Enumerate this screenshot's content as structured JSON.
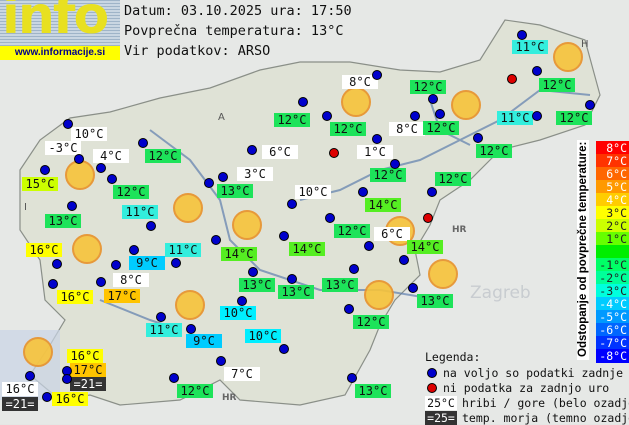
{
  "logo": {
    "word": "info",
    "url": "www.informacije.si"
  },
  "header": {
    "date_line": "Datum: 03.10.2025 ura: 17:50",
    "avg_line": "Povprečna temperatura: 13°C",
    "source_line": "Vir podatkov: ARSO"
  },
  "map_labels": {
    "austria": "A",
    "italy": "I",
    "hungary": "H",
    "croatia": "HR",
    "city_zagreb": "Zagreb"
  },
  "stations": [
    {
      "text": "11°C",
      "style": "cyan"
    },
    {
      "text": "8°C",
      "style": "white"
    },
    {
      "text": "12°C",
      "style": "green"
    },
    {
      "text": "12°C",
      "style": "green"
    },
    {
      "text": "12°C",
      "style": "green"
    },
    {
      "text": "12°C",
      "style": "green"
    },
    {
      "text": "8°C",
      "style": "white"
    },
    {
      "text": "12°C",
      "style": "green"
    },
    {
      "text": "11°C",
      "style": "cyan"
    },
    {
      "text": "12°C",
      "style": "green"
    },
    {
      "text": "10°C",
      "style": "white"
    },
    {
      "text": "-3°C",
      "style": "white"
    },
    {
      "text": "4°C",
      "style": "white"
    },
    {
      "text": "12°C",
      "style": "green"
    },
    {
      "text": "6°C",
      "style": "white"
    },
    {
      "text": "1°C",
      "style": "white"
    },
    {
      "text": "12°C",
      "style": "green"
    },
    {
      "text": "15°C",
      "style": "ygreen"
    },
    {
      "text": "12°C",
      "style": "green"
    },
    {
      "text": "3°C",
      "style": "white"
    },
    {
      "text": "13°C",
      "style": "green"
    },
    {
      "text": "12°C",
      "style": "green"
    },
    {
      "text": "12°C",
      "style": "green"
    },
    {
      "text": "10°C",
      "style": "white"
    },
    {
      "text": "11°C",
      "style": "cyan"
    },
    {
      "text": "13°C",
      "style": "green"
    },
    {
      "text": "14°C",
      "style": "lime"
    },
    {
      "text": "12°C",
      "style": "green"
    },
    {
      "text": "6°C",
      "style": "white"
    },
    {
      "text": "14°C",
      "style": "lime"
    },
    {
      "text": "16°C",
      "style": "yellow"
    },
    {
      "text": "11°C",
      "style": "cyan"
    },
    {
      "text": "14°C",
      "style": "lime"
    },
    {
      "text": "14°C",
      "style": "lime"
    },
    {
      "text": "9°C",
      "style": "sky"
    },
    {
      "text": "8°C",
      "style": "white"
    },
    {
      "text": "16°C",
      "style": "yellow"
    },
    {
      "text": "17°C",
      "style": "orange"
    },
    {
      "text": "13°C",
      "style": "green"
    },
    {
      "text": "13°C",
      "style": "green"
    },
    {
      "text": "13°C",
      "style": "green"
    },
    {
      "text": "13°C",
      "style": "green"
    },
    {
      "text": "10°C",
      "style": "aqua"
    },
    {
      "text": "11°C",
      "style": "cyan"
    },
    {
      "text": "9°C",
      "style": "sky"
    },
    {
      "text": "10°C",
      "style": "aqua"
    },
    {
      "text": "12°C",
      "style": "green"
    },
    {
      "text": "16°C",
      "style": "yellow"
    },
    {
      "text": "17°C",
      "style": "orange"
    },
    {
      "text": "=21=",
      "style": "dark"
    },
    {
      "text": "7°C",
      "style": "white"
    },
    {
      "text": "16°C",
      "style": "white"
    },
    {
      "text": "=21=",
      "style": "dark"
    },
    {
      "text": "16°C",
      "style": "yellow"
    },
    {
      "text": "12°C",
      "style": "green"
    },
    {
      "text": "13°C",
      "style": "green"
    }
  ],
  "style_colors": {
    "green": "#1de35a",
    "lime": "#55ee22",
    "ygreen": "#ccff00",
    "yellow": "#ffff00",
    "orange": "#ffc400",
    "cyan": "#33eedd",
    "aqua": "#00eeff",
    "sky": "#00ccff",
    "white": "#ffffff",
    "dark": "#333333"
  },
  "dot_colors": {
    "available": "#0000cc",
    "missing": "#dd0000"
  },
  "colorbar": {
    "title": "Odstopanje od povprečne temperature:",
    "steps": [
      {
        "label": "8°C",
        "color": "#ff0000"
      },
      {
        "label": "7°C",
        "color": "#ff3300"
      },
      {
        "label": "6°C",
        "color": "#ff6600"
      },
      {
        "label": "5°C",
        "color": "#ff9900"
      },
      {
        "label": "4°C",
        "color": "#ffcc00"
      },
      {
        "label": "3°C",
        "color": "#ffff00"
      },
      {
        "label": "2°C",
        "color": "#ccff00"
      },
      {
        "label": "1°C",
        "color": "#66ff00"
      },
      {
        "label": "",
        "color": "#00ee00"
      },
      {
        "label": "-1°C",
        "color": "#00ff66"
      },
      {
        "label": "-2°C",
        "color": "#00ff99"
      },
      {
        "label": "-3°C",
        "color": "#00ffdd"
      },
      {
        "label": "-4°C",
        "color": "#00ccff"
      },
      {
        "label": "-5°C",
        "color": "#0099ff"
      },
      {
        "label": "-6°C",
        "color": "#0066ff"
      },
      {
        "label": "-7°C",
        "color": "#0033ff"
      },
      {
        "label": "-8°C",
        "color": "#0000ff"
      }
    ]
  },
  "legend": {
    "title": "Legenda:",
    "available": "na voljo so podatki zadnje ure",
    "missing": "ni podatka za zadnjo uro",
    "mountain_sample": "25°C",
    "mountain": "hribi / gore (belo ozadje)",
    "sea_sample": "=25=",
    "sea": "temp. morja (temno ozadje)"
  }
}
